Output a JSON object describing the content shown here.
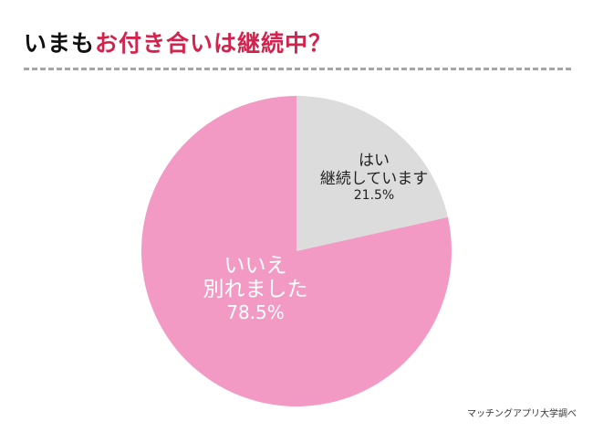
{
  "title": {
    "prefix": "いまも",
    "highlight": "お付き合いは継続中？"
  },
  "source": "マッチングアプリ大学調べ",
  "chart_data": {
    "type": "pie",
    "start": "12 o'clock, clockwise",
    "slices": [
      {
        "label_line1": "はい",
        "label_line2": "継続しています",
        "value": 21.5,
        "value_label": "21.5%",
        "color": "#dcdcdc"
      },
      {
        "label_line1": "いいえ",
        "label_line2": "別れました",
        "value": 78.5,
        "value_label": "78.5%",
        "color": "#f29ac4"
      }
    ]
  }
}
